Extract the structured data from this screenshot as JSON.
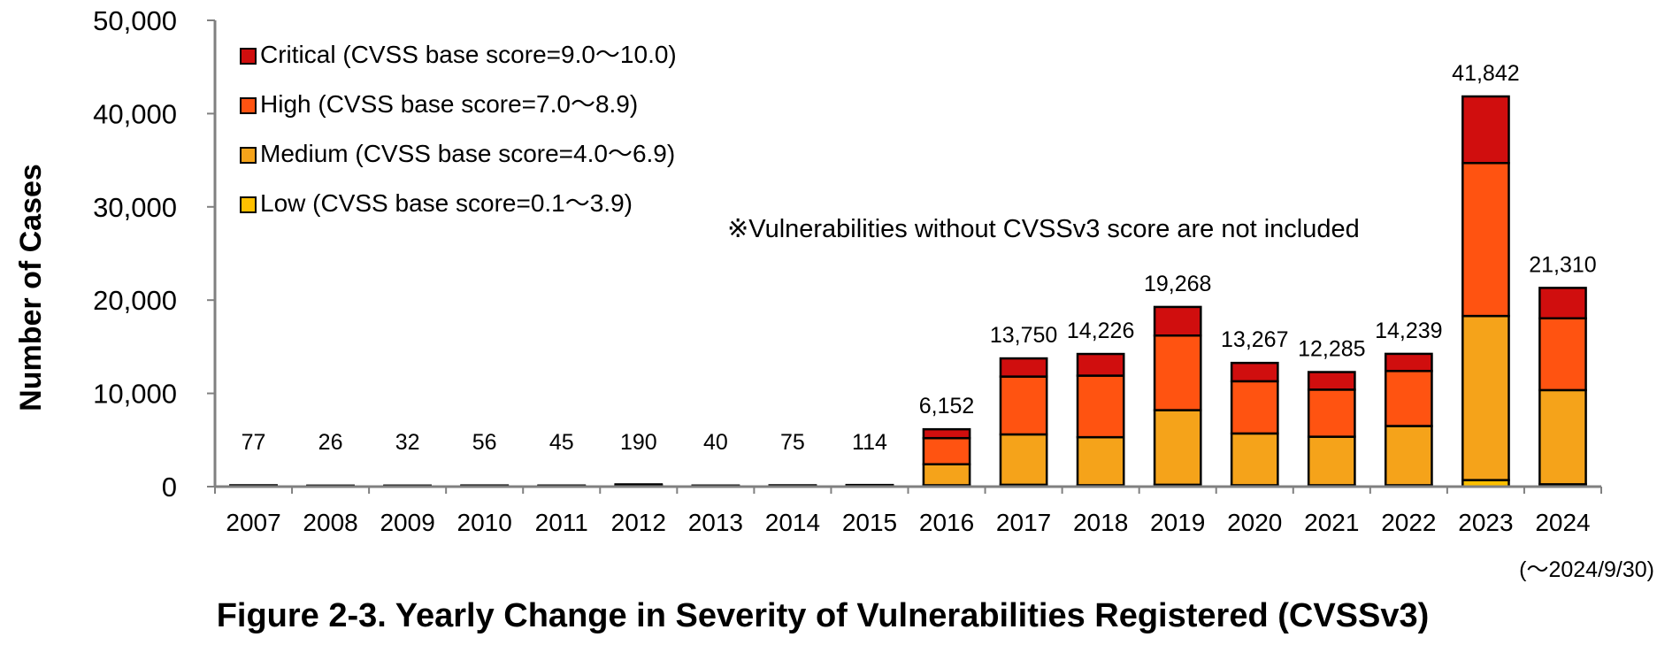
{
  "chart_data": {
    "type": "bar",
    "stacked": true,
    "title": "Figure 2-3. Yearly Change in Severity of Vulnerabilities Registered (CVSSv3)",
    "xlabel": "",
    "ylabel": "Number of Cases",
    "ylim": [
      0,
      50000
    ],
    "yticks": [
      "0",
      "10,000",
      "20,000",
      "30,000",
      "40,000",
      "50,000"
    ],
    "ytick_values": [
      0,
      10000,
      20000,
      30000,
      40000,
      50000
    ],
    "categories": [
      "2007",
      "2008",
      "2009",
      "2010",
      "2011",
      "2012",
      "2013",
      "2014",
      "2015",
      "2016",
      "2017",
      "2018",
      "2019",
      "2020",
      "2021",
      "2022",
      "2023",
      "2024"
    ],
    "totals": [
      "77",
      "26",
      "32",
      "56",
      "45",
      "190",
      "40",
      "75",
      "114",
      "6,152",
      "13,750",
      "14,226",
      "19,268",
      "13,267",
      "12,285",
      "14,239",
      "41,842",
      "21,310"
    ],
    "total_values": [
      77,
      26,
      32,
      56,
      45,
      190,
      40,
      75,
      114,
      6152,
      13750,
      14226,
      19268,
      13267,
      12285,
      14239,
      41842,
      21310
    ],
    "series": [
      {
        "name": "Low (CVSS base score=0.1～3.9)",
        "color": "#FFC000",
        "values": [
          2,
          1,
          1,
          2,
          1,
          5,
          1,
          2,
          3,
          150,
          200,
          150,
          200,
          150,
          150,
          150,
          700,
          250
        ]
      },
      {
        "name": "Medium (CVSS base score=4.0～6.9)",
        "color": "#F5A31A",
        "values": [
          40,
          14,
          17,
          30,
          24,
          100,
          21,
          40,
          60,
          2250,
          5400,
          5150,
          8000,
          5550,
          5200,
          6350,
          17600,
          10100
        ]
      },
      {
        "name": "High (CVSS base score=7.0～8.9)",
        "color": "#FF5311",
        "values": [
          25,
          8,
          10,
          17,
          14,
          60,
          13,
          24,
          36,
          2800,
          6200,
          6600,
          8000,
          5600,
          5050,
          5900,
          16400,
          7700
        ]
      },
      {
        "name": "Critical (CVSS base score=9.0～10.0)",
        "color": "#D00E0E",
        "values": [
          10,
          3,
          4,
          7,
          6,
          25,
          5,
          9,
          15,
          952,
          1950,
          2326,
          3068,
          1967,
          1885,
          1839,
          7142,
          3260
        ]
      }
    ],
    "legend_order": [
      3,
      2,
      1,
      0
    ],
    "legend_position": "top-left",
    "grid": false,
    "annotations": {
      "note": "※Vulnerabilities without CVSSv3 score are not included",
      "period": "(～2024/9/30)"
    }
  }
}
